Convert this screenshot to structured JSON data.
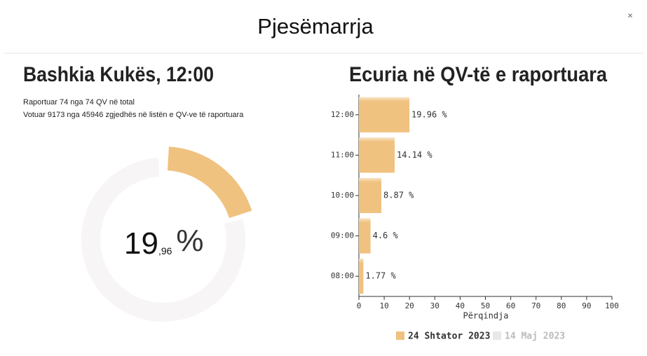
{
  "header": {
    "title": "Pjesëmarrja",
    "close": "×"
  },
  "summary": {
    "title": "Bashkia Kukës, 12:00",
    "lines": [
      "Raportuar 74 nga 74 QV në total",
      "Votuar 9173 nga 45946 zgjedhës në listën e QV-ve të raportuara"
    ],
    "donut": {
      "value": 19.96,
      "max": 100,
      "integer": "19",
      "decimal": ",96",
      "unit": "%",
      "color": "#f0c27f",
      "track_color": "#f7f5f5"
    }
  },
  "chart_data": {
    "type": "hbar",
    "title": "Ecuria në QV-të e raportuara",
    "categories": [
      "12:00",
      "11:00",
      "10:00",
      "09:00",
      "08:00"
    ],
    "series": [
      {
        "name": "24 Shtator 2023",
        "color": "#f0c27f",
        "values": [
          19.96,
          14.14,
          8.87,
          4.6,
          1.77
        ],
        "value_labels": [
          "19.96 %",
          "14.14 %",
          "8.87 %",
          "4.6 %",
          "1.77 %"
        ]
      }
    ],
    "hidden_series": [
      {
        "name": "14 Maj 2023",
        "color": "#e8e8e8"
      }
    ],
    "xlabel": "Përqindja",
    "xlim": [
      0,
      100
    ],
    "xticks": [
      0,
      10,
      20,
      30,
      40,
      50,
      60,
      70,
      80,
      90,
      100
    ]
  }
}
